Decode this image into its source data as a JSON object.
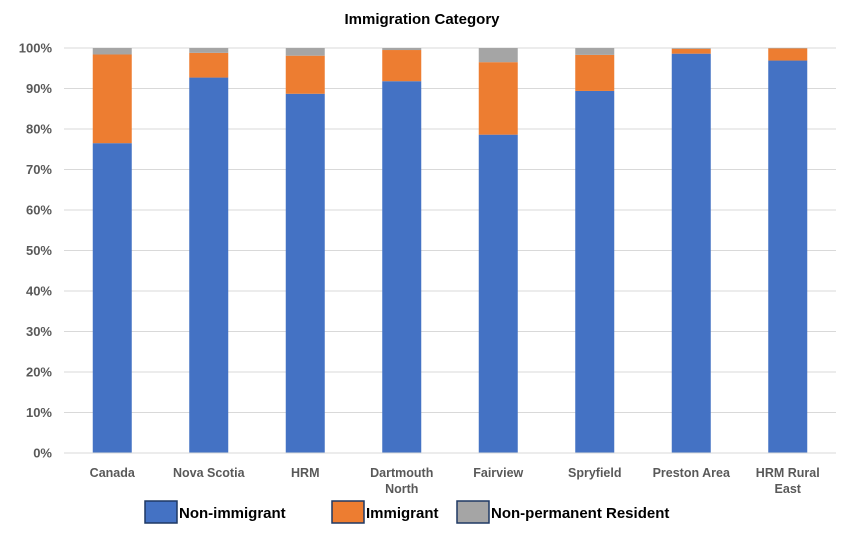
{
  "chart_data": {
    "type": "bar",
    "stacked": true,
    "title": "Immigration Category",
    "categories": [
      [
        "Canada"
      ],
      [
        "Nova Scotia"
      ],
      [
        "HRM"
      ],
      [
        "Dartmouth",
        "North"
      ],
      [
        "Fairview"
      ],
      [
        "Spryfield"
      ],
      [
        "Preston Area"
      ],
      [
        "HRM Rural",
        "East"
      ]
    ],
    "series": [
      {
        "name": "Non-immigrant",
        "color": "#4472C4",
        "values": [
          76.5,
          92.7,
          88.7,
          91.8,
          78.6,
          89.4,
          98.6,
          96.9
        ]
      },
      {
        "name": "Immigrant",
        "color": "#ED7D31",
        "values": [
          21.9,
          6.1,
          9.4,
          7.7,
          17.9,
          8.9,
          1.2,
          3.0
        ]
      },
      {
        "name": "Non-permanent Resident",
        "color": "#A5A5A5",
        "values": [
          1.6,
          1.2,
          1.9,
          0.5,
          3.5,
          1.7,
          0.2,
          0.1
        ]
      }
    ],
    "ylim": [
      0,
      100
    ],
    "yticks": [
      "0%",
      "10%",
      "20%",
      "30%",
      "40%",
      "50%",
      "60%",
      "70%",
      "80%",
      "90%",
      "100%"
    ],
    "grid": true,
    "legend_position": "bottom"
  }
}
